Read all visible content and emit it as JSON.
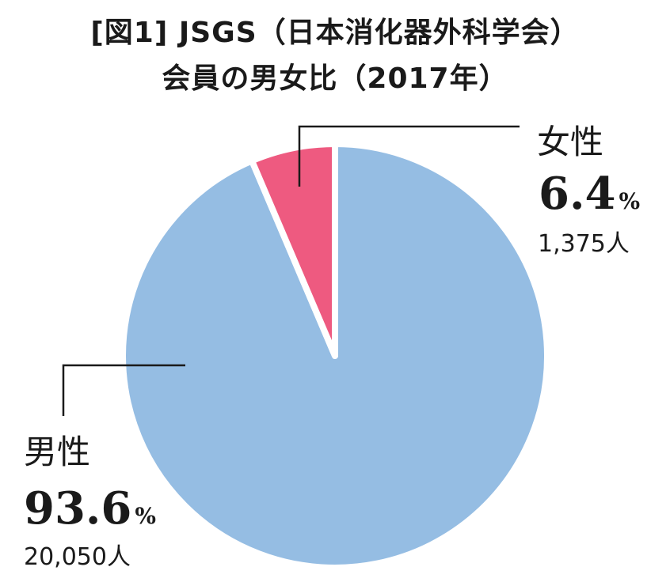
{
  "title": {
    "line1": "[図1] JSGS（日本消化器外科学会）",
    "line2": "会員の男女比（2017年）"
  },
  "colors": {
    "male": "#95bde3",
    "female": "#ee5a80",
    "separator": "#ffffff",
    "leader": "#1a1a1a"
  },
  "chart_data": {
    "type": "pie",
    "title": "[図1] JSGS（日本消化器外科学会） 会員の男女比（2017年）",
    "unit": "%",
    "slices": [
      {
        "label": "男性",
        "value": 93.6,
        "value_text": "93.6",
        "percent_sign": "%",
        "count": 20050,
        "count_text": "20,050人",
        "color": "#95bde3"
      },
      {
        "label": "女性",
        "value": 6.4,
        "value_text": "6.4",
        "percent_sign": "%",
        "count": 1375,
        "count_text": "1,375人",
        "color": "#ee5a80"
      }
    ],
    "start_angle": "12 o'clock",
    "direction": "clockwise from female slice",
    "legend": "none"
  }
}
